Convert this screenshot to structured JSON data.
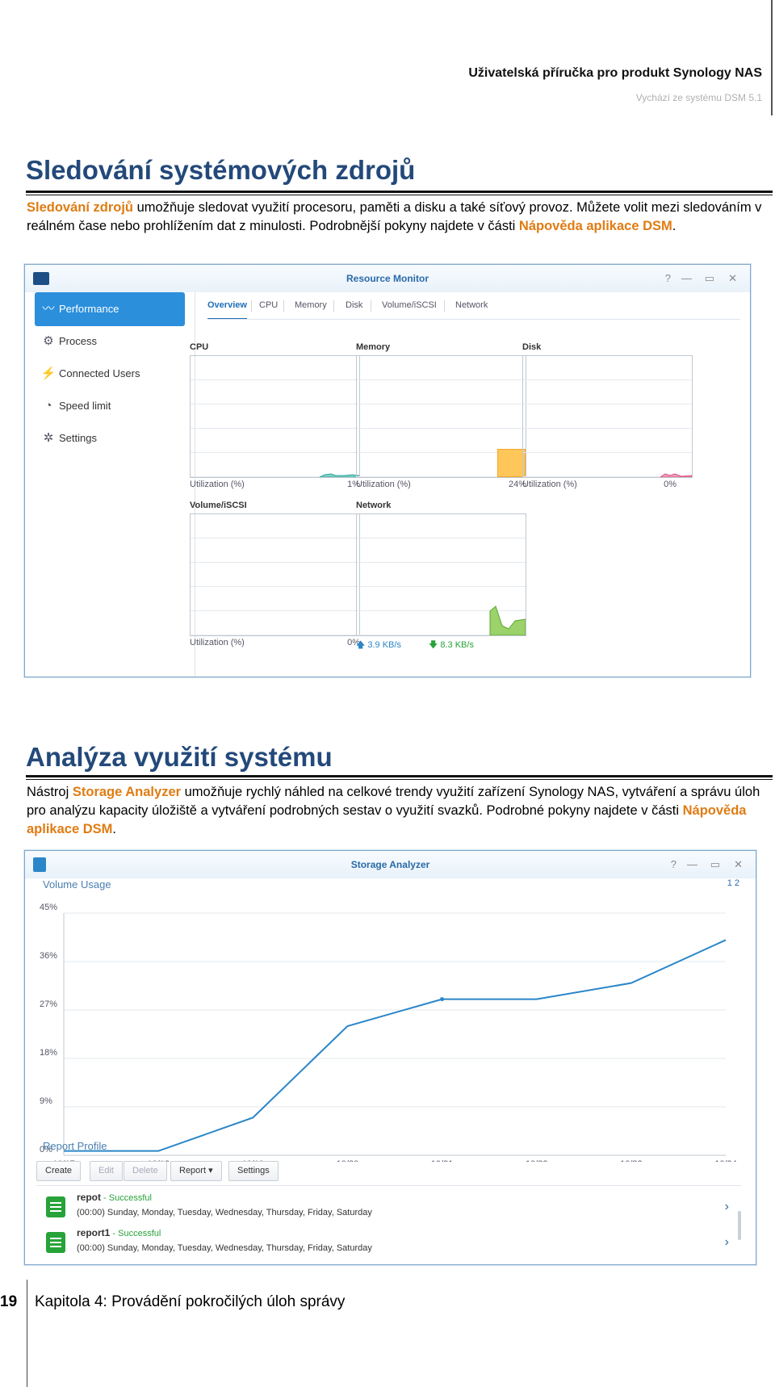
{
  "header": {
    "title": "Uživatelská příručka pro produkt Synology NAS",
    "subtitle": "Vychází ze systému DSM 5.1"
  },
  "section1": {
    "heading": "Sledování systémových zdrojů",
    "p_link1": "Sledování zdrojů",
    "p_text1": " umožňuje sledovat využití procesoru, paměti a disku a také síťový provoz. Můžete volit mezi sledováním v reálném čase nebo prohlížením dat z minulosti. Podrobnější pokyny najdete v části ",
    "p_link2": "Nápověda aplikace DSM",
    "p_end": "."
  },
  "resource_monitor": {
    "title": "Resource Monitor",
    "controls": [
      "?",
      "—",
      "▭",
      "✕"
    ],
    "sidebar": [
      {
        "label": "Performance",
        "icon": "chart-icon"
      },
      {
        "label": "Process",
        "icon": "process-icon"
      },
      {
        "label": "Connected Users",
        "icon": "plug-icon"
      },
      {
        "label": "Speed limit",
        "icon": "gauge-icon"
      },
      {
        "label": "Settings",
        "icon": "gear-icon"
      }
    ],
    "tabs": [
      "Overview",
      "CPU",
      "Memory",
      "Disk",
      "Volume/iSCSI",
      "Network"
    ],
    "panels": {
      "cpu": {
        "title": "CPU",
        "left": "Utilization (%)",
        "right": "1%",
        "value": 1
      },
      "memory": {
        "title": "Memory",
        "left": "Utilization (%)",
        "right": "24%",
        "value": 24
      },
      "disk": {
        "title": "Disk",
        "left": "Utilization (%)",
        "right": "0%",
        "value": 0
      },
      "volume": {
        "title": "Volume/iSCSI",
        "left": "Utilization (%)",
        "right": "0%",
        "value": 0
      },
      "network": {
        "title": "Network",
        "up": "3.9 KB/s",
        "down": "8.3 KB/s"
      }
    }
  },
  "section2": {
    "heading": "Analýza využití systému",
    "p_text1": "Nástroj ",
    "p_link1": "Storage Analyzer",
    "p_text2": " umožňuje rychlý náhled na celkové trendy využití zařízení Synology NAS, vytváření a správu úloh pro analýzu kapacity úložiště a vytváření podrobných sestav o využití svazků. Podrobné pokyny najdete v části ",
    "p_link2": "Nápověda aplikace DSM",
    "p_end": "."
  },
  "storage_analyzer": {
    "title": "Storage Analyzer",
    "controls": [
      "?",
      "—",
      "▭",
      "✕"
    ],
    "volume_usage_title": "Volume Usage",
    "pages": "1   2",
    "report_profile_title": "Report Profile",
    "buttons": [
      {
        "label": "Create",
        "enabled": true
      },
      {
        "label": "Edit",
        "enabled": false
      },
      {
        "label": "Delete",
        "enabled": false
      },
      {
        "label": "Report ▾",
        "enabled": true
      },
      {
        "label": "Settings",
        "enabled": true
      }
    ],
    "reports": [
      {
        "name": "repot",
        "status": " - Successful",
        "schedule": "(00:00) Sunday, Monday, Tuesday, Wednesday, Thursday, Friday, Saturday"
      },
      {
        "name": "report1",
        "status": " - Successful",
        "schedule": "(00:00) Sunday, Monday, Tuesday, Wednesday, Thursday, Friday, Saturday"
      }
    ]
  },
  "chart_data": {
    "type": "line",
    "title": "Volume Usage",
    "x": [
      "10/17",
      "10/18",
      "10/19",
      "10/20",
      "10/21",
      "10/22",
      "10/23",
      "10/24"
    ],
    "series": [
      {
        "values": [
          0.8,
          0.8,
          7,
          24,
          29,
          29,
          32,
          40
        ]
      }
    ],
    "y_ticks": [
      "0%",
      "9%",
      "18%",
      "27%",
      "36%",
      "45%"
    ],
    "ylim": [
      0,
      45
    ],
    "grid": true,
    "color": "#2a86c8"
  },
  "footer": {
    "page_number": "19",
    "chapter": "Kapitola 4: Provádění pokročilých úloh správy"
  }
}
